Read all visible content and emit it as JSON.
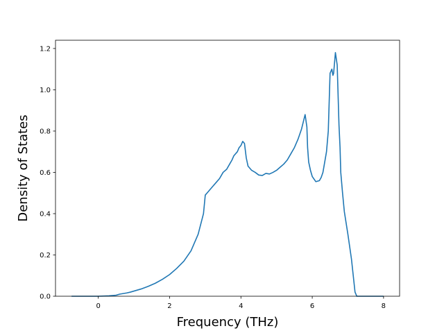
{
  "chart_data": {
    "type": "line",
    "title": "",
    "xlabel": "Frequency (THz)",
    "ylabel": "Density of States",
    "xlim": [
      -1.2,
      8.45
    ],
    "ylim": [
      0.0,
      1.24
    ],
    "xticks": [
      0,
      2,
      4,
      6,
      8
    ],
    "xtick_labels": [
      "0",
      "2",
      "4",
      "6",
      "8"
    ],
    "yticks": [
      0.0,
      0.2,
      0.4,
      0.6,
      0.8,
      1.0,
      1.2
    ],
    "ytick_labels": [
      "0.0",
      "0.2",
      "0.4",
      "0.6",
      "0.8",
      "1.0",
      "1.2"
    ],
    "grid": false,
    "legend": "none",
    "series": [
      {
        "color": "#1f77b4",
        "x": [
          -0.75,
          0.0,
          0.3,
          0.5,
          0.6,
          0.8,
          0.9,
          1.0,
          1.2,
          1.4,
          1.6,
          1.8,
          2.0,
          2.2,
          2.4,
          2.6,
          2.8,
          2.95,
          3.0,
          3.05,
          3.1,
          3.2,
          3.3,
          3.4,
          3.5,
          3.6,
          3.7,
          3.75,
          3.8,
          3.9,
          3.95,
          4.0,
          4.05,
          4.1,
          4.15,
          4.2,
          4.3,
          4.4,
          4.5,
          4.6,
          4.7,
          4.8,
          4.9,
          5.0,
          5.1,
          5.2,
          5.3,
          5.4,
          5.5,
          5.6,
          5.7,
          5.8,
          5.85,
          5.87,
          5.9,
          5.95,
          6.0,
          6.1,
          6.2,
          6.25,
          6.3,
          6.4,
          6.45,
          6.5,
          6.55,
          6.58,
          6.6,
          6.65,
          6.7,
          6.75,
          6.78,
          6.8,
          6.85,
          6.9,
          7.0,
          7.1,
          7.2,
          7.25,
          7.3,
          7.5,
          8.0
        ],
        "y": [
          0.0,
          0.0,
          0.002,
          0.005,
          0.01,
          0.016,
          0.02,
          0.025,
          0.035,
          0.048,
          0.063,
          0.082,
          0.105,
          0.135,
          0.17,
          0.22,
          0.3,
          0.4,
          0.49,
          0.5,
          0.51,
          0.53,
          0.55,
          0.57,
          0.6,
          0.615,
          0.645,
          0.66,
          0.68,
          0.7,
          0.72,
          0.73,
          0.75,
          0.74,
          0.67,
          0.63,
          0.61,
          0.6,
          0.587,
          0.585,
          0.595,
          0.592,
          0.6,
          0.61,
          0.625,
          0.64,
          0.66,
          0.69,
          0.72,
          0.76,
          0.81,
          0.88,
          0.82,
          0.72,
          0.65,
          0.61,
          0.58,
          0.555,
          0.56,
          0.575,
          0.6,
          0.7,
          0.8,
          1.08,
          1.1,
          1.07,
          1.08,
          1.18,
          1.12,
          0.83,
          0.72,
          0.6,
          0.5,
          0.41,
          0.3,
          0.18,
          0.02,
          0.0,
          0.0,
          0.0,
          0.0
        ]
      }
    ]
  }
}
